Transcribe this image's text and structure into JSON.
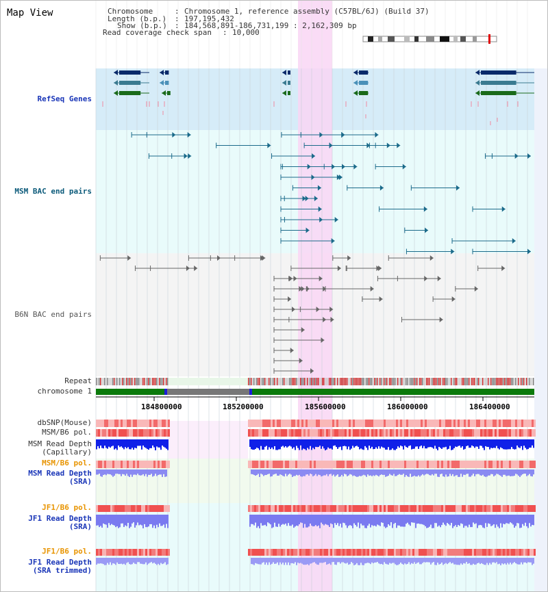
{
  "header": {
    "title": "Map View",
    "chromosome_label": "Chromosome",
    "chromosome_value": "Chromosome 1, reference assembly (C57BL/6J) (Build 37)",
    "length_label": "Length (b.p.)",
    "length_value": "197,195,432",
    "show_label": "Show (b.p.)",
    "show_value": "184,568,891-186,731,199 : 2,162,309 bp",
    "span_label": "Read coverage check span",
    "span_value": "10,000"
  },
  "tracks": {
    "refseq": "RefSeq Genes",
    "msm_bac": "MSM BAC end pairs",
    "b6n_bac": "B6N BAC end pairs",
    "repeat": "Repeat",
    "chromosome": "chromosome 1",
    "dbsnp": "dbSNP(Mouse)",
    "msm_pol": "MSM/B6 pol.",
    "msm_depth_cap_1": "MSM Read Depth",
    "msm_depth_cap_2": "(Capillary)",
    "msm_pol_sra": "MSM/B6 pol.",
    "msm_depth_sra_1": "MSM Read Depth",
    "msm_depth_sra_2": "(SRA)",
    "jf1_pol": "JF1/B6 pol.",
    "jf1_depth_1": "JF1 Read Depth",
    "jf1_depth_2": "(SRA)",
    "jf1_pol_trim": "JF1/B6 pol.",
    "jf1_depth_trim_1": "JF1 Read Depth",
    "jf1_depth_trim_2": "(SRA trimmed)"
  },
  "axis": {
    "ticks": [
      "184800000",
      "185200000",
      "185600000",
      "186000000",
      "186400000"
    ]
  },
  "colors": {
    "refseq_bg": "#d6ecf8",
    "bac_bg": "#e9fbfb",
    "gray_bg": "#f4f4f4",
    "highlight": "#f9d6f4",
    "chrom_green": "#0b7a0b",
    "depth_blue": "#1020e8",
    "depth_light": "#8a8af2",
    "pol_red": "#e83030"
  }
}
